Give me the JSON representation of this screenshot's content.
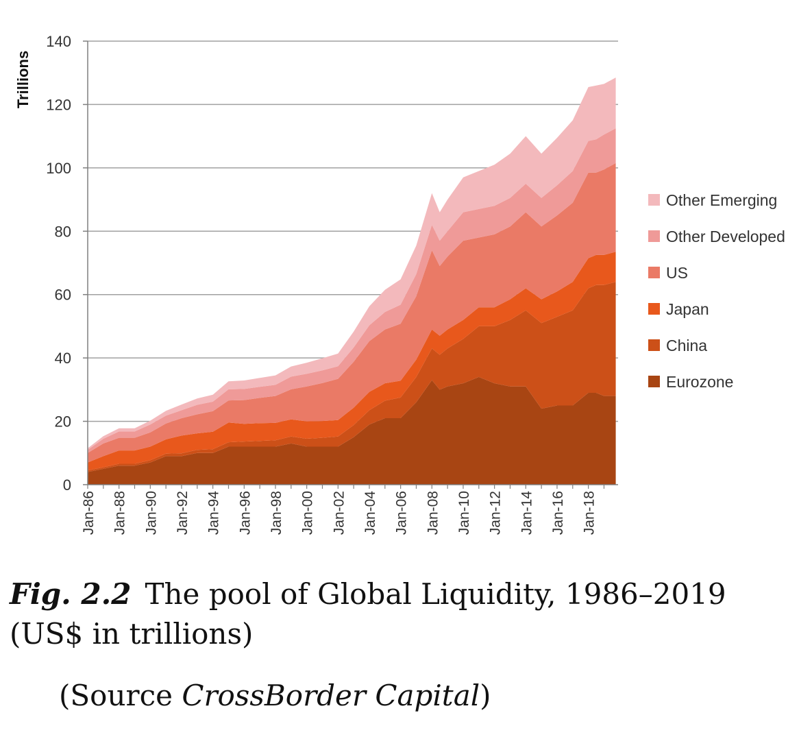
{
  "chart_data": {
    "type": "area",
    "stacked": true,
    "ylabel": "Trillions",
    "ylim": [
      0,
      140
    ],
    "yticks": [
      0,
      20,
      40,
      60,
      80,
      100,
      120,
      140
    ],
    "grid": true,
    "legend_position": "right",
    "x_tick_labels": [
      "Jan-86",
      "Jan-88",
      "Jan-90",
      "Jan-92",
      "Jan-94",
      "Jan-96",
      "Jan-98",
      "Jan-00",
      "Jan-02",
      "Jan-04",
      "Jan-06",
      "Jan-08",
      "Jan-10",
      "Jan-12",
      "Jan-14",
      "Jan-16",
      "Jan-18"
    ],
    "x": [
      1986.0,
      1987.0,
      1988.0,
      1989.0,
      1990.0,
      1991.0,
      1992.0,
      1993.0,
      1994.0,
      1995.0,
      1996.0,
      1997.0,
      1998.0,
      1999.0,
      2000.0,
      2001.0,
      2002.0,
      2003.0,
      2004.0,
      2005.0,
      2006.0,
      2007.0,
      2008.0,
      2008.5,
      2009.0,
      2010.0,
      2011.0,
      2012.0,
      2013.0,
      2014.0,
      2015.0,
      2016.0,
      2017.0,
      2018.0,
      2018.5,
      2019.0,
      2019.75
    ],
    "series": [
      {
        "name": "Eurozone",
        "color": "#a84513",
        "values": [
          4,
          5,
          6,
          6,
          7,
          9,
          9,
          10,
          10,
          12,
          12,
          12,
          12,
          13,
          12,
          12,
          12,
          15,
          19,
          21,
          21,
          26,
          33,
          30,
          31,
          32,
          34,
          32,
          31,
          31,
          24,
          25,
          25,
          29,
          29,
          28,
          28
        ]
      },
      {
        "name": "China",
        "color": "#cc5018",
        "values": [
          0.5,
          0.5,
          0.6,
          0.6,
          0.7,
          0.8,
          0.9,
          1,
          1.2,
          1.4,
          1.6,
          1.8,
          2,
          2.2,
          2.5,
          2.8,
          3.2,
          3.8,
          4.5,
          5.5,
          6.5,
          8,
          10,
          11,
          12,
          14,
          16,
          18,
          21,
          24,
          27,
          28,
          30,
          33,
          34,
          35,
          36
        ]
      },
      {
        "name": "Japan",
        "color": "#e8581c",
        "values": [
          2.5,
          3.5,
          4.2,
          4.2,
          4.3,
          4.5,
          5.6,
          5.2,
          5.5,
          6.2,
          5.6,
          5.6,
          5.5,
          5.4,
          5.5,
          5.3,
          5.2,
          5.5,
          5.8,
          5.5,
          5.3,
          5.5,
          6,
          6,
          6,
          6,
          6,
          6,
          6.5,
          7,
          7.5,
          8,
          9,
          9.5,
          9.5,
          9.5,
          9.5
        ]
      },
      {
        "name": "US",
        "color": "#ea7a66",
        "values": [
          3,
          4,
          4,
          4,
          4.5,
          5,
          5.5,
          6,
          6.5,
          7,
          7.5,
          8,
          8.5,
          9.5,
          11,
          12,
          13,
          14.5,
          16,
          17,
          18,
          20,
          25,
          22,
          23,
          25,
          22,
          23,
          23,
          24,
          23,
          24,
          25,
          27,
          26,
          27,
          28
        ]
      },
      {
        "name": "Other Developed",
        "color": "#ef9a98",
        "values": [
          1,
          1.5,
          2,
          2,
          2.5,
          2.5,
          2.5,
          3,
          3,
          3.5,
          3.5,
          3.5,
          3.5,
          4,
          4,
          4,
          4,
          4.5,
          5,
          5.5,
          6,
          7,
          8,
          8,
          8,
          9,
          9,
          9,
          9,
          9,
          9,
          9.5,
          10,
          10,
          10.5,
          11,
          11
        ]
      },
      {
        "name": "Other Emerging",
        "color": "#f3b9bc",
        "values": [
          0.5,
          0.8,
          1,
          1,
          1.2,
          1.5,
          1.8,
          2,
          2.2,
          2.5,
          2.7,
          2.8,
          3,
          3.2,
          3.5,
          3.8,
          4,
          5,
          6,
          7,
          8,
          9,
          10,
          9,
          10,
          11,
          12,
          13,
          14,
          15,
          14,
          15,
          16,
          17,
          17,
          16,
          16
        ]
      }
    ]
  },
  "caption": {
    "fig_label": "Fig. 2.2",
    "title": "The pool of Global Liquidity, 1986–2019 (US$ in trillions)",
    "source_prefix": "(Source ",
    "source_name": "CrossBorder Capital",
    "source_suffix": ")"
  }
}
